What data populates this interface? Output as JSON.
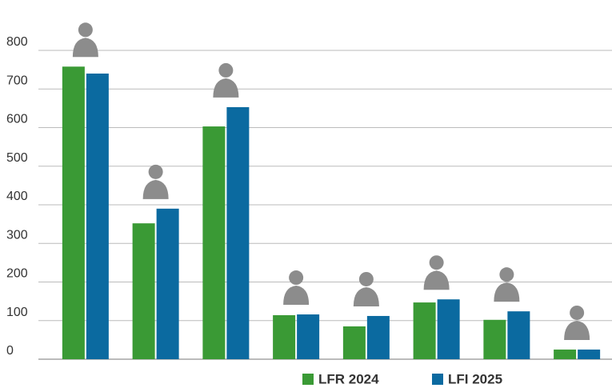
{
  "chart_data": {
    "type": "bar",
    "categories": [
      null,
      null,
      null,
      null,
      null,
      null,
      null,
      null
    ],
    "series": [
      {
        "name": "LFR 2024",
        "color": "#3a9a35",
        "values": [
          758,
          352,
          603,
          114,
          85,
          147,
          102,
          25
        ]
      },
      {
        "name": "LFI 2025",
        "color": "#0b6aa0",
        "values": [
          740,
          390,
          653,
          116,
          112,
          155,
          124,
          25
        ]
      }
    ],
    "ylim": [
      0,
      880
    ],
    "yticks": [
      0,
      100,
      200,
      300,
      400,
      500,
      600,
      700,
      800
    ],
    "grid": true
  }
}
